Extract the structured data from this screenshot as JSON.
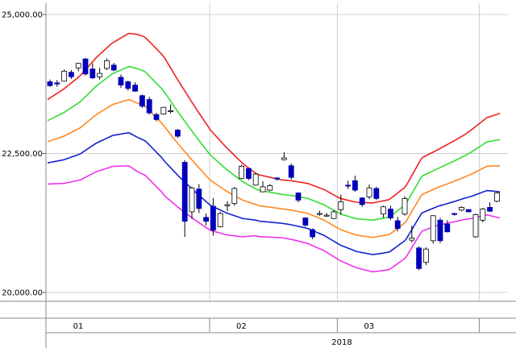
{
  "chart_data": {
    "type": "candlestick",
    "title": "",
    "year_label": "2018",
    "x_labels": [
      "01",
      "02",
      "03"
    ],
    "y_ticks": [
      {
        "value": 25000,
        "label": "25,000.00"
      },
      {
        "value": 22500,
        "label": "22,500.00"
      },
      {
        "value": 20000,
        "label": "20,000.00"
      }
    ],
    "ylim": [
      19950,
      25050
    ],
    "n_days": 64,
    "month_start_index": {
      "01": 0,
      "02": 23,
      "03": 41,
      "04": 61
    },
    "grid": true,
    "colors": {
      "up_body": "#ffffff",
      "down_body": "#0000bb",
      "wick": "#000000",
      "plus2sigma": "#ee2222",
      "plus1sigma": "#33dd33",
      "ma": "#ff8822",
      "minus1sigma": "#1122cc",
      "minus2sigma": "#ee33ee"
    },
    "candles": [
      [
        23790,
        23830,
        23700,
        23720
      ],
      [
        23770,
        23820,
        23700,
        23750
      ],
      [
        23800,
        24010,
        23790,
        23980
      ],
      [
        23960,
        24000,
        23840,
        23880
      ],
      [
        24040,
        24130,
        23980,
        24120
      ],
      [
        24200,
        24220,
        23900,
        23930
      ],
      [
        24020,
        24120,
        23840,
        23860
      ],
      [
        23880,
        24040,
        23830,
        23940
      ],
      [
        24030,
        24210,
        24000,
        24170
      ],
      [
        24090,
        24130,
        23980,
        24000
      ],
      [
        23870,
        23920,
        23680,
        23730
      ],
      [
        23790,
        23810,
        23630,
        23670
      ],
      [
        23730,
        23780,
        23610,
        23620
      ],
      [
        23540,
        23560,
        23320,
        23350
      ],
      [
        23470,
        23520,
        23200,
        23230
      ],
      [
        23200,
        23230,
        23080,
        23110
      ],
      [
        23210,
        23340,
        23200,
        23330
      ],
      [
        23270,
        23380,
        23220,
        23270
      ],
      [
        22920,
        22940,
        22780,
        22810
      ],
      [
        22340,
        22380,
        21000,
        21280
      ],
      [
        21450,
        21900,
        21320,
        21880
      ],
      [
        21860,
        21950,
        21430,
        21510
      ],
      [
        21350,
        21420,
        21200,
        21280
      ],
      [
        21550,
        21700,
        21020,
        21120
      ],
      [
        21180,
        21450,
        21170,
        21420
      ],
      [
        21560,
        21640,
        21460,
        21580
      ],
      [
        21600,
        21900,
        21560,
        21870
      ],
      [
        22050,
        22300,
        22040,
        22270
      ],
      [
        22230,
        22240,
        22020,
        22050
      ],
      [
        21930,
        22150,
        21920,
        22130
      ],
      [
        21810,
        22000,
        21800,
        21900
      ],
      [
        21840,
        21950,
        21820,
        21920
      ],
      [
        22060,
        22070,
        22010,
        22040
      ],
      [
        22390,
        22520,
        22370,
        22420
      ],
      [
        22280,
        22320,
        22030,
        22070
      ],
      [
        21790,
        21800,
        21620,
        21660
      ],
      [
        21340,
        21350,
        21180,
        21210
      ],
      [
        21130,
        21150,
        20960,
        21000
      ],
      [
        21410,
        21470,
        21380,
        21420
      ],
      [
        21380,
        21430,
        21360,
        21390
      ],
      [
        21330,
        21480,
        21320,
        21450
      ],
      [
        21490,
        21760,
        21400,
        21630
      ],
      [
        21930,
        22010,
        21860,
        21920
      ],
      [
        22010,
        22100,
        21810,
        21840
      ],
      [
        21700,
        21710,
        21540,
        21580
      ],
      [
        21720,
        21940,
        21680,
        21880
      ],
      [
        21870,
        21900,
        21660,
        21690
      ],
      [
        21410,
        21560,
        21340,
        21540
      ],
      [
        21500,
        21560,
        21300,
        21340
      ],
      [
        21290,
        21360,
        21100,
        21150
      ],
      [
        21410,
        21730,
        21380,
        21690
      ],
      [
        20940,
        21200,
        20900,
        20980
      ],
      [
        20800,
        20830,
        20400,
        20430
      ],
      [
        20540,
        20810,
        20490,
        20780
      ],
      [
        20930,
        21390,
        20880,
        21380
      ],
      [
        21300,
        21340,
        20890,
        20930
      ],
      [
        21230,
        21300,
        21080,
        21090
      ],
      [
        21420,
        21430,
        21380,
        21410
      ],
      [
        21480,
        21550,
        21460,
        21530
      ],
      [
        21490,
        21500,
        21440,
        21450
      ],
      [
        21000,
        21420,
        20980,
        21400
      ],
      [
        21300,
        21520,
        21260,
        21500
      ],
      [
        21530,
        21620,
        21450,
        21460
      ],
      [
        21640,
        21800,
        21620,
        21790
      ]
    ],
    "bands": {
      "ma": [
        [
          0,
          22710
        ],
        [
          5,
          22810
        ],
        [
          10,
          22960
        ],
        [
          15,
          23200
        ],
        [
          20,
          23380
        ],
        [
          25,
          23470
        ],
        [
          30,
          23350
        ],
        [
          35,
          23050
        ],
        [
          40,
          22680
        ],
        [
          45,
          22340
        ],
        [
          50,
          22020
        ],
        [
          55,
          21820
        ],
        [
          60,
          21660
        ],
        [
          65,
          21560
        ],
        [
          70,
          21520
        ],
        [
          75,
          21480
        ],
        [
          80,
          21420
        ],
        [
          85,
          21300
        ],
        [
          90,
          21130
        ],
        [
          95,
          21030
        ],
        [
          100,
          20990
        ],
        [
          105,
          21040
        ],
        [
          110,
          21260
        ],
        [
          115,
          21760
        ],
        [
          120,
          21890
        ],
        [
          125,
          22000
        ],
        [
          130,
          22120
        ],
        [
          135,
          22270
        ],
        [
          139,
          22280
        ]
      ]
    }
  }
}
